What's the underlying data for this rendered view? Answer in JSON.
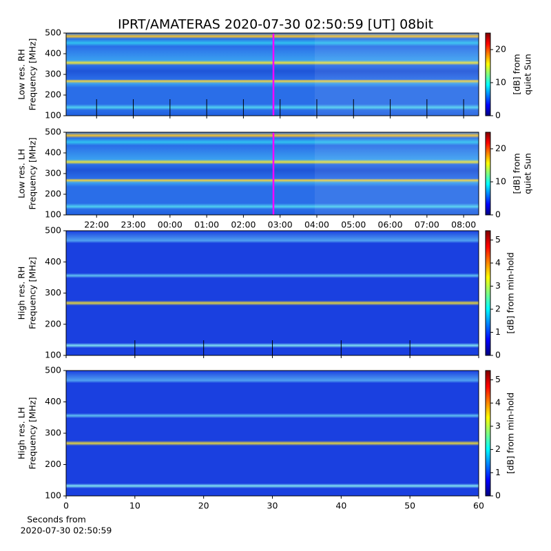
{
  "chart_data": [
    {
      "type": "heatmap",
      "title": "IPRT/AMATERAS 2020-07-30 02:50:59 [UT]   08bit",
      "ylabel": [
        "Low res. RH",
        "Frequency [MHz]"
      ],
      "ylim": [
        100,
        500
      ],
      "yticks": [
        100,
        200,
        300,
        400,
        500
      ],
      "colorbar_label": [
        "[dB] from",
        "quiet Sun"
      ],
      "colorbar_lim": [
        0,
        25
      ],
      "colorbar_ticks": [
        0,
        10,
        20
      ]
    },
    {
      "type": "heatmap",
      "ylabel": [
        "Low res. LH",
        "Frequency [MHz]"
      ],
      "ylim": [
        100,
        500
      ],
      "yticks": [
        100,
        200,
        300,
        400,
        500
      ],
      "xlim": [
        21.17,
        32.41
      ],
      "xticks": [
        {
          "value": 22,
          "label": "22:00"
        },
        {
          "value": 23,
          "label": "23:00"
        },
        {
          "value": 24,
          "label": "00:00"
        },
        {
          "value": 25,
          "label": "01:00"
        },
        {
          "value": 26,
          "label": "02:00"
        },
        {
          "value": 27,
          "label": "03:00"
        },
        {
          "value": 28,
          "label": "04:00"
        },
        {
          "value": 29,
          "label": "05:00"
        },
        {
          "value": 30,
          "label": "06:00"
        },
        {
          "value": 31,
          "label": "07:00"
        },
        {
          "value": 32,
          "label": "08:00"
        }
      ],
      "colorbar_label": [
        "[dB] from",
        "quiet Sun"
      ],
      "colorbar_lim": [
        0,
        25
      ],
      "colorbar_ticks": [
        0,
        10,
        20
      ]
    },
    {
      "type": "heatmap",
      "ylabel": [
        "High res. RH",
        "Frequency [MHz]"
      ],
      "ylim": [
        100,
        500
      ],
      "yticks": [
        100,
        200,
        300,
        400,
        500
      ],
      "colorbar_label": [
        "[dB] from min-hold"
      ],
      "colorbar_lim": [
        0,
        5.4
      ],
      "colorbar_ticks": [
        0,
        1,
        2,
        3,
        4,
        5
      ]
    },
    {
      "type": "heatmap",
      "ylabel": [
        "High res. LH",
        "Frequency [MHz]"
      ],
      "ylim": [
        100,
        500
      ],
      "yticks": [
        100,
        200,
        300,
        400,
        500
      ],
      "xlim": [
        0,
        60
      ],
      "xticks": [
        0,
        10,
        20,
        30,
        40,
        50,
        60
      ],
      "xlabel": [
        "Seconds from",
        "2020-07-30 02:50:59"
      ],
      "colorbar_label": [
        "[dB] from min-hold"
      ],
      "colorbar_lim": [
        0,
        5.4
      ],
      "colorbar_ticks": [
        0,
        1,
        2,
        3,
        4,
        5
      ]
    }
  ]
}
